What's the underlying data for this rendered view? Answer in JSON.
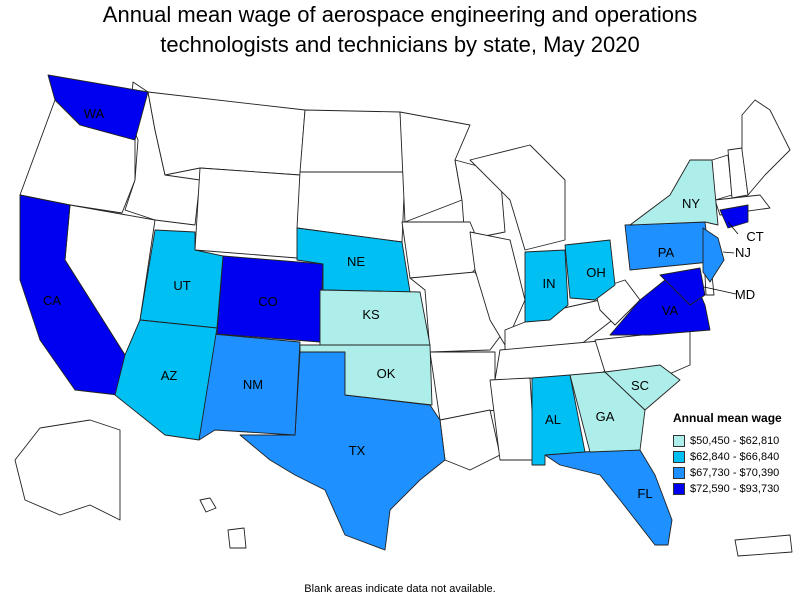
{
  "title": {
    "line1": "Annual mean wage of aerospace engineering and operations",
    "line2": "technologists and technicians by state, May 2020"
  },
  "legend": {
    "title": "Annual mean wage",
    "items": [
      {
        "label": "$50,450 - $62,810",
        "color": "#aeeeea"
      },
      {
        "label": "$62,840 - $66,840",
        "color": "#00bff2"
      },
      {
        "label": "$67,730 - $70,390",
        "color": "#1e90ff"
      },
      {
        "label": "$72,590 - $93,730",
        "color": "#0000f0"
      }
    ]
  },
  "states": [
    {
      "code": "WA",
      "tier": 3
    },
    {
      "code": "CA",
      "tier": 3
    },
    {
      "code": "CO",
      "tier": 3
    },
    {
      "code": "VA",
      "tier": 3
    },
    {
      "code": "CT",
      "tier": 3
    },
    {
      "code": "MD",
      "tier": 3
    },
    {
      "code": "TX",
      "tier": 2
    },
    {
      "code": "NM",
      "tier": 2
    },
    {
      "code": "FL",
      "tier": 2
    },
    {
      "code": "PA",
      "tier": 2
    },
    {
      "code": "NJ",
      "tier": 2
    },
    {
      "code": "UT",
      "tier": 1
    },
    {
      "code": "AZ",
      "tier": 1
    },
    {
      "code": "NE",
      "tier": 1
    },
    {
      "code": "IN",
      "tier": 1
    },
    {
      "code": "OH",
      "tier": 1
    },
    {
      "code": "AL",
      "tier": 1
    },
    {
      "code": "KS",
      "tier": 0
    },
    {
      "code": "OK",
      "tier": 0
    },
    {
      "code": "NY",
      "tier": 0
    },
    {
      "code": "GA",
      "tier": 0
    },
    {
      "code": "SC",
      "tier": 0
    }
  ],
  "footnote": "Blank areas indicate data not available."
}
